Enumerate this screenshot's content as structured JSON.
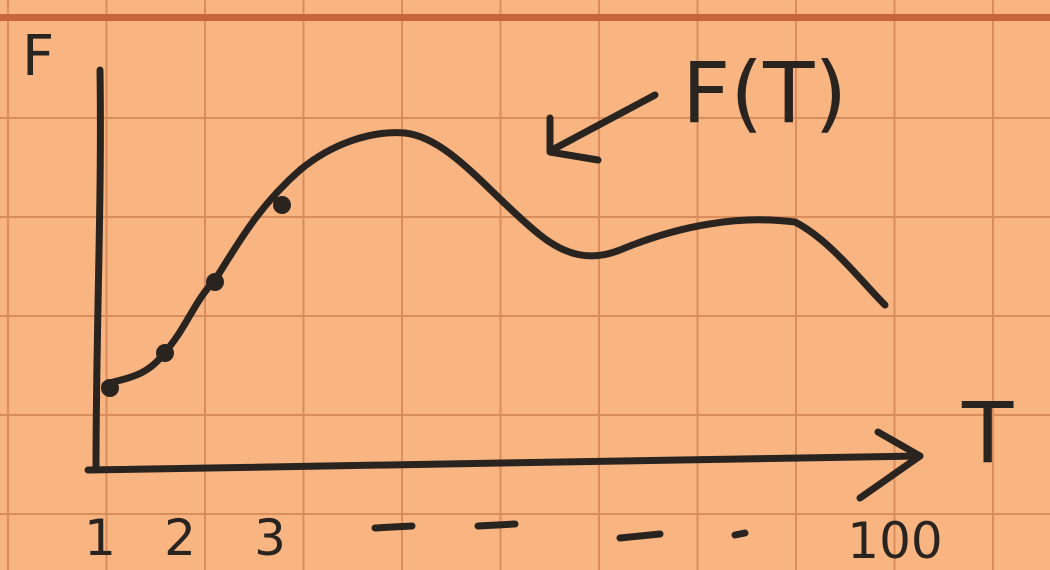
{
  "y_axis_label": "F",
  "x_axis_label": "T",
  "curve_label": "F(T)",
  "x_labels": [
    "1",
    "2",
    "3",
    "100"
  ]
}
